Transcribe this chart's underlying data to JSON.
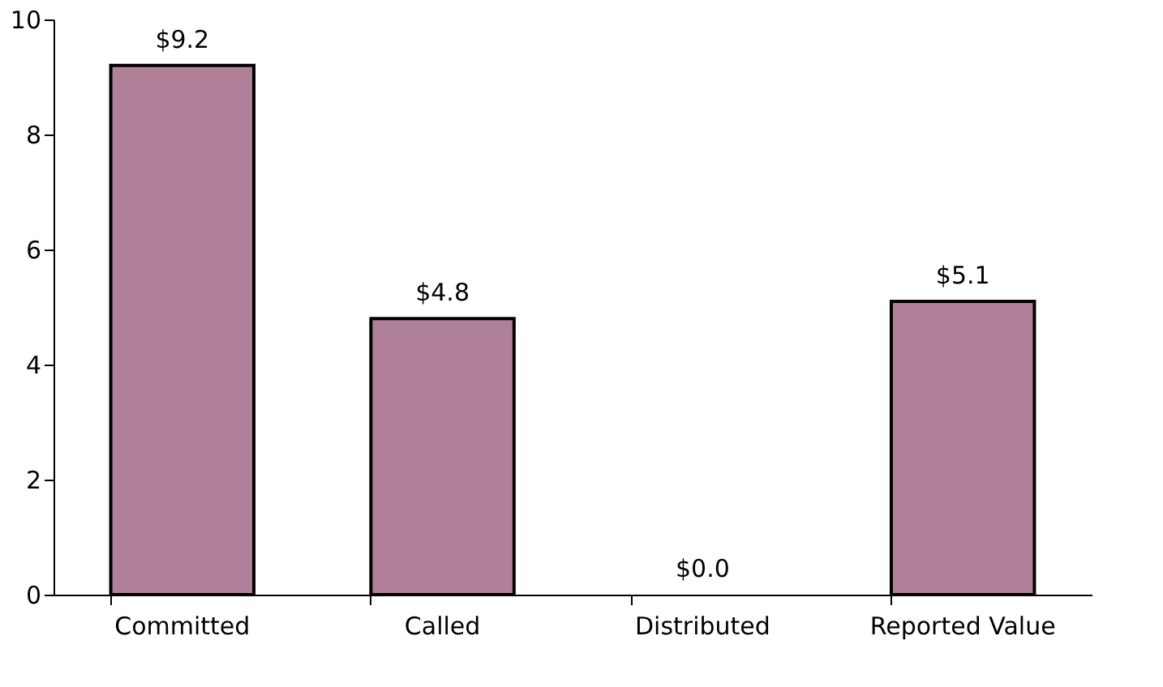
{
  "chart_data": {
    "type": "bar",
    "categories": [
      "Committed",
      "Called",
      "Distributed",
      "Reported Value"
    ],
    "values": [
      9.2,
      4.8,
      0.0,
      5.1
    ],
    "value_labels": [
      "$9.2",
      "$4.8",
      "$0.0",
      "$5.1"
    ],
    "color": "#b08098",
    "ylim": [
      0,
      10
    ],
    "yticks": [
      0,
      2,
      4,
      6,
      8,
      10
    ],
    "grid": false
  }
}
